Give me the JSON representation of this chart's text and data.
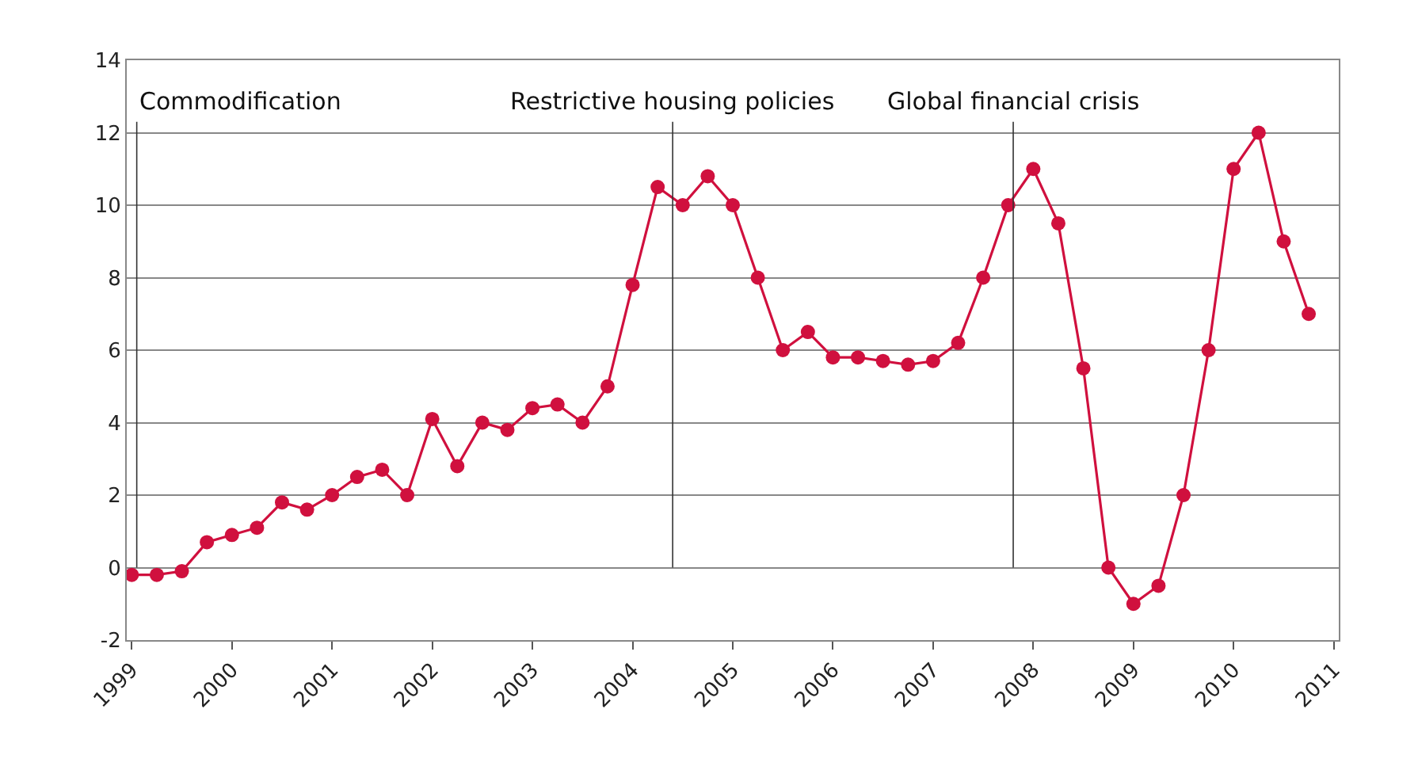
{
  "chart_data": {
    "type": "line",
    "x": [
      1999.0,
      1999.25,
      1999.5,
      1999.75,
      2000.0,
      2000.25,
      2000.5,
      2000.75,
      2001.0,
      2001.25,
      2001.5,
      2001.75,
      2002.0,
      2002.25,
      2002.5,
      2002.75,
      2003.0,
      2003.25,
      2003.5,
      2003.75,
      2004.0,
      2004.25,
      2004.5,
      2004.75,
      2005.0,
      2005.25,
      2005.5,
      2005.75,
      2006.0,
      2006.25,
      2006.5,
      2006.75,
      2007.0,
      2007.25,
      2007.5,
      2007.75,
      2008.0,
      2008.25,
      2008.5,
      2008.75,
      2009.0,
      2009.25,
      2009.5,
      2009.75,
      2010.0,
      2010.25,
      2010.5,
      2010.75
    ],
    "series": [
      {
        "color": "#d0103e",
        "values": [
          -0.2,
          -0.2,
          -0.1,
          0.7,
          0.9,
          1.1,
          1.8,
          1.6,
          2.0,
          2.5,
          2.7,
          2.0,
          4.1,
          2.8,
          4.0,
          3.8,
          4.4,
          4.5,
          4.0,
          5.0,
          7.8,
          10.5,
          10.0,
          10.8,
          10.0,
          8.0,
          6.0,
          6.5,
          5.8,
          5.8,
          5.7,
          5.6,
          5.7,
          6.2,
          8.0,
          10.0,
          11.0,
          9.5,
          5.5,
          0.0,
          -1.0,
          -0.5,
          2.0,
          6.0,
          11.0,
          12.0,
          9.0,
          7.0
        ]
      }
    ],
    "xlim": [
      1998.95,
      2011.05
    ],
    "xticks": [
      1999,
      2000,
      2001,
      2002,
      2003,
      2004,
      2005,
      2006,
      2007,
      2008,
      2009,
      2010,
      2011
    ],
    "ylim": [
      -2,
      14
    ],
    "yticks": [
      -2,
      0,
      2,
      4,
      6,
      8,
      10,
      12,
      14
    ],
    "grid": "y",
    "marker": "circle",
    "line_style": "solid",
    "ref_lines": [
      {
        "axis": "x",
        "value": 1999.05,
        "label": "Commodification",
        "color": "#333333"
      },
      {
        "axis": "x",
        "value": 2004.4,
        "label": "Restrictive housing policies",
        "color": "#333333"
      },
      {
        "axis": "x",
        "value": 2007.8,
        "label": "Global financial crisis",
        "color": "#333333"
      }
    ]
  }
}
